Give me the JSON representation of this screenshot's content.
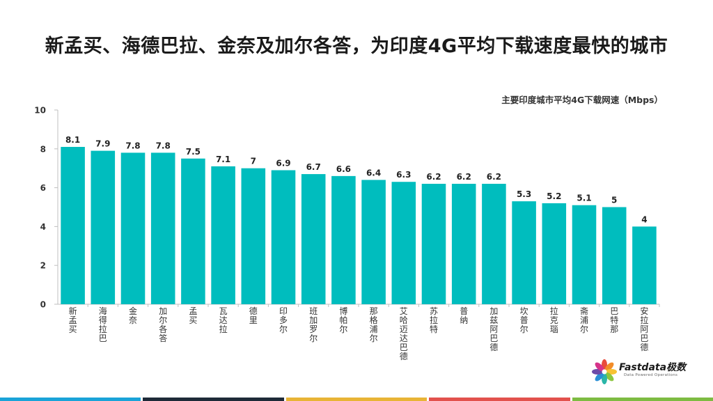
{
  "title": "新孟买、海德巴拉、金奈及加尔各答，为印度4G平均下载速度最快的城市",
  "logo": {
    "name": "Fastdata极数",
    "tagline": "Data Powered Operations"
  },
  "chart_data": {
    "type": "bar",
    "title": "",
    "unit_label": "主要印度城市平均4G下载网速（Mbps）",
    "xlabel": "",
    "ylabel": "",
    "ylim": [
      0,
      10
    ],
    "yticks": [
      0,
      2,
      4,
      6,
      8,
      10
    ],
    "grid": false,
    "bar_color": "#00BDBE",
    "categories": [
      "新孟买",
      "海得拉巴",
      "金奈",
      "加尔各答",
      "孟买",
      "瓦达拉",
      "德里",
      "印多尔",
      "班加罗尔",
      "博帕尔",
      "那格浦尔",
      "艾哈迈达巴德",
      "苏拉特",
      "普纳",
      "加兹阿巴德",
      "坎普尔",
      "拉克瑙",
      "斋浦尔",
      "巴特那",
      "安拉阿巴德"
    ],
    "values": [
      8.1,
      7.9,
      7.8,
      7.8,
      7.5,
      7.1,
      7,
      6.9,
      6.7,
      6.6,
      6.4,
      6.3,
      6.2,
      6.2,
      6.2,
      5.3,
      5.2,
      5.1,
      5,
      4
    ],
    "value_labels": [
      "8.1",
      "7.9",
      "7.8",
      "7.8",
      "7.5",
      "7.1",
      "7",
      "6.9",
      "6.7",
      "6.6",
      "6.4",
      "6.3",
      "6.2",
      "6.2",
      "6.2",
      "5.3",
      "5.2",
      "5.1",
      "5",
      "4"
    ]
  },
  "footer_colors": [
    "#1AA3D8",
    "#1E2A38",
    "#E8B435",
    "#E2514C",
    "#7DBB42"
  ]
}
